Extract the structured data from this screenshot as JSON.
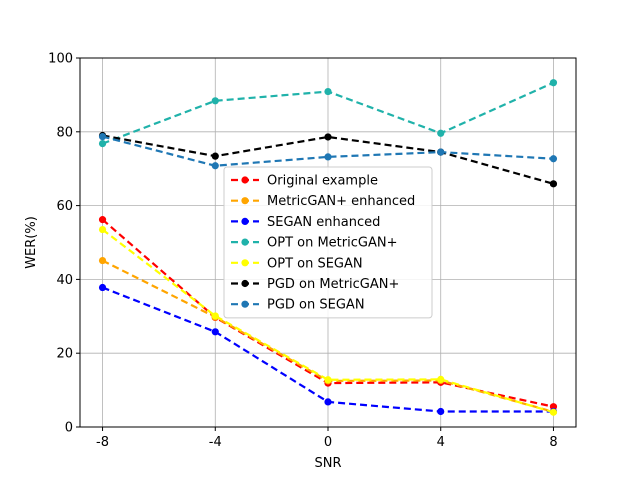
{
  "chart_data": {
    "type": "line",
    "x": [
      -8,
      -4,
      0,
      4,
      8
    ],
    "x_tick_labels": [
      "-8",
      "-4",
      "0",
      "4",
      "8"
    ],
    "y_ticks": [
      0,
      20,
      40,
      60,
      80,
      100
    ],
    "y_tick_labels": [
      "0",
      "20",
      "40",
      "60",
      "80",
      "100"
    ],
    "xlim": [
      -8.8,
      8.8
    ],
    "ylim": [
      0,
      100
    ],
    "xlabel": "SNR",
    "ylabel": "WER(%)",
    "grid": true,
    "legend_position": "center",
    "series": [
      {
        "name": "Original example",
        "color": "#ff0000",
        "values": [
          56.2,
          29.7,
          11.9,
          12.1,
          5.5
        ]
      },
      {
        "name": "MetricGAN+ enhanced",
        "color": "#ffa500",
        "values": [
          45.1,
          29.8,
          12.5,
          12.6,
          4.1
        ]
      },
      {
        "name": "SEGAN enhanced",
        "color": "#0000ff",
        "values": [
          37.8,
          25.8,
          6.8,
          4.2,
          4.2
        ]
      },
      {
        "name": "OPT on MetricGAN+",
        "color": "#20b2aa",
        "values": [
          76.8,
          88.4,
          90.9,
          79.6,
          93.3
        ]
      },
      {
        "name": "OPT on SEGAN",
        "color": "#ffff00",
        "values": [
          53.5,
          30.1,
          12.8,
          12.9,
          4.0
        ]
      },
      {
        "name": "PGD on MetricGAN+",
        "color": "#000000",
        "values": [
          79.0,
          73.4,
          78.6,
          74.5,
          65.9
        ]
      },
      {
        "name": "PGD on SEGAN",
        "color": "#1f77b4",
        "values": [
          78.7,
          70.8,
          73.2,
          74.5,
          72.7
        ]
      }
    ]
  }
}
